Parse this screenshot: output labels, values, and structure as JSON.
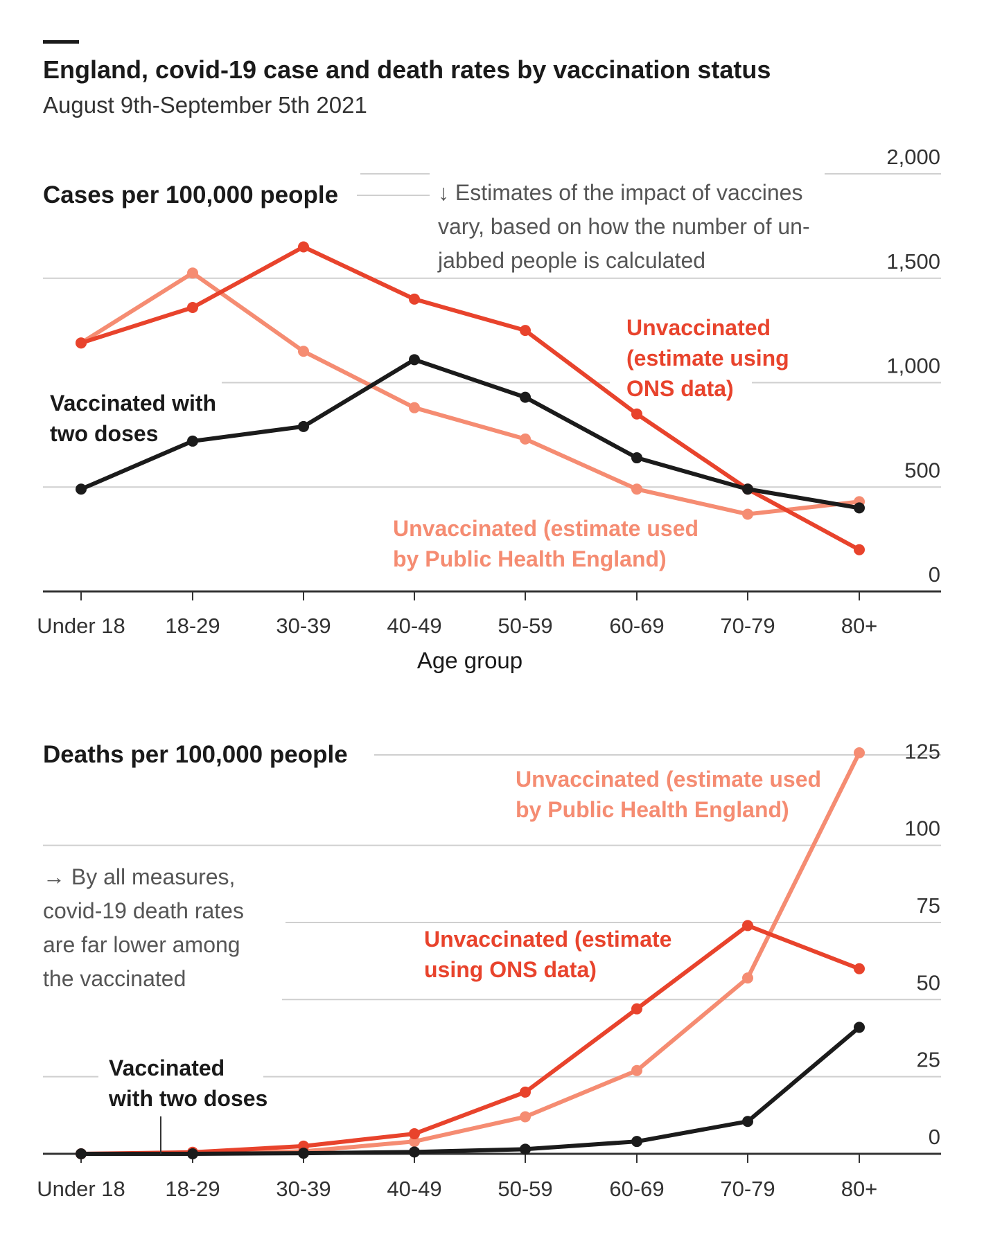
{
  "title": "England, covid-19 case and death rates by vaccination status",
  "subtitle": "August 9th-September 5th 2021",
  "colors": {
    "ons": "#e8432c",
    "phe": "#f58c72",
    "vaccinated": "#1b1b1b",
    "grid": "#cfcfcf"
  },
  "chart_data": [
    {
      "type": "line",
      "title": "Cases per 100,000 people",
      "xlabel": "Age group",
      "ylabel": "",
      "categories": [
        "Under 18",
        "18-29",
        "30-39",
        "40-49",
        "50-59",
        "60-69",
        "70-79",
        "80+"
      ],
      "ylim": [
        0,
        2000
      ],
      "yticks": [
        0,
        500,
        1000,
        1500,
        2000
      ],
      "ytick_labels": [
        "0",
        "500",
        "1,000",
        "1,500",
        "2,000"
      ],
      "series": [
        {
          "name": "Unvaccinated (estimate used by Public Health England)",
          "color_key": "phe",
          "values": [
            1190,
            1525,
            1150,
            880,
            730,
            490,
            370,
            430
          ]
        },
        {
          "name": "Unvaccinated (estimate using ONS data)",
          "color_key": "ons",
          "values": [
            1190,
            1360,
            1650,
            1400,
            1250,
            850,
            490,
            200
          ]
        },
        {
          "name": "Vaccinated with two doses",
          "color_key": "vaccinated",
          "values": [
            490,
            720,
            790,
            1110,
            930,
            640,
            490,
            400
          ]
        }
      ],
      "annotations": [
        {
          "id": "note",
          "lines": [
            "↓ Estimates of the impact of vaccines",
            "vary, based on how the number of un-",
            "jabbed people is calculated"
          ]
        },
        {
          "id": "ons",
          "lines": [
            "Unvaccinated",
            "(estimate using",
            "ONS data)"
          ]
        },
        {
          "id": "phe",
          "lines": [
            "Unvaccinated (estimate used",
            "by Public Health England)"
          ]
        },
        {
          "id": "vac",
          "lines": [
            "Vaccinated with",
            "two doses"
          ]
        }
      ]
    },
    {
      "type": "line",
      "title": "Deaths per 100,000 people",
      "xlabel": "",
      "ylabel": "",
      "categories": [
        "Under 18",
        "18-29",
        "30-39",
        "40-49",
        "50-59",
        "60-69",
        "70-79",
        "80+"
      ],
      "ylim": [
        0,
        130
      ],
      "yticks": [
        0,
        25,
        50,
        75,
        100,
        125
      ],
      "ytick_labels": [
        "0",
        "25",
        "50",
        "75",
        "100",
        "125"
      ],
      "series": [
        {
          "name": "Unvaccinated (estimate used by Public Health England)",
          "color_key": "phe",
          "values": [
            0,
            0.2,
            0.8,
            4,
            12,
            27,
            57,
            130
          ]
        },
        {
          "name": "Unvaccinated (estimate using ONS data)",
          "color_key": "ons",
          "values": [
            0,
            0.5,
            2.5,
            6.5,
            20,
            47,
            74,
            60
          ]
        },
        {
          "name": "Vaccinated with two doses",
          "color_key": "vaccinated",
          "values": [
            0,
            0,
            0.2,
            0.6,
            1.5,
            4,
            10.5,
            41
          ]
        }
      ],
      "annotations": [
        {
          "id": "phe",
          "lines": [
            "Unvaccinated (estimate used",
            "by Public Health England)"
          ]
        },
        {
          "id": "ons",
          "lines": [
            "Unvaccinated (estimate",
            "using ONS data)"
          ]
        },
        {
          "id": "note",
          "lines": [
            "→ By all measures,",
            "covid-19 death rates",
            "are far lower among",
            "the vaccinated"
          ]
        },
        {
          "id": "vac",
          "lines": [
            "Vaccinated",
            "with two doses"
          ]
        }
      ]
    }
  ]
}
